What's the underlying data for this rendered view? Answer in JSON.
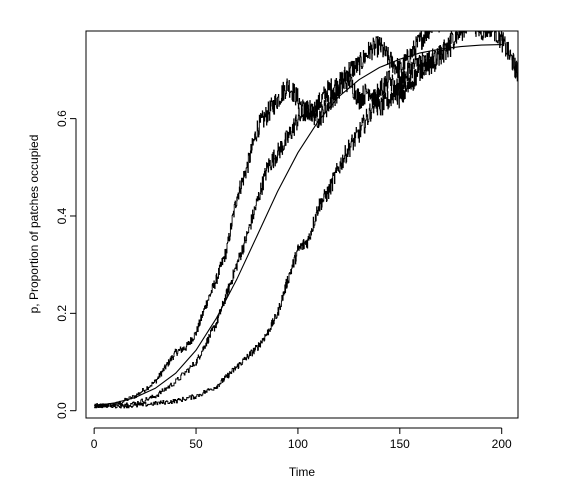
{
  "chart_data": {
    "type": "line",
    "title": "",
    "xlabel": "Time",
    "ylabel": "p, Proportion of patches occupied",
    "xlim": [
      -4,
      208
    ],
    "ylim": [
      -0.015,
      0.78
    ],
    "x_ticks": [
      0,
      50,
      100,
      150,
      200
    ],
    "x_tick_labels": [
      "0",
      "50",
      "100",
      "150",
      "200"
    ],
    "y_ticks": [
      0.0,
      0.2,
      0.4,
      0.6
    ],
    "y_tick_labels": [
      "0.0",
      "0.2",
      "0.4",
      "0.6"
    ],
    "grid": false,
    "legend": "none",
    "line_color": "#000000",
    "series": [
      {
        "style": "smooth",
        "x": [
          0,
          10,
          20,
          30,
          40,
          50,
          60,
          70,
          80,
          90,
          100,
          110,
          120,
          130,
          140,
          150,
          160,
          170,
          180,
          190,
          200
        ],
        "y": [
          0.01,
          0.016,
          0.027,
          0.046,
          0.077,
          0.124,
          0.19,
          0.27,
          0.36,
          0.45,
          0.53,
          0.595,
          0.645,
          0.68,
          0.705,
          0.722,
          0.735,
          0.743,
          0.748,
          0.751,
          0.752
        ]
      },
      {
        "style": "stochastic",
        "x": [
          0,
          10,
          20,
          30,
          35,
          40,
          45,
          50,
          55,
          60,
          65,
          70,
          75,
          80,
          85,
          90,
          95,
          100,
          105,
          110,
          115,
          120,
          125,
          130,
          135,
          140,
          145,
          150,
          155,
          160,
          165,
          170
        ],
        "y": [
          0.01,
          0.012,
          0.03,
          0.06,
          0.09,
          0.12,
          0.13,
          0.16,
          0.22,
          0.27,
          0.33,
          0.44,
          0.5,
          0.58,
          0.61,
          0.64,
          0.67,
          0.64,
          0.6,
          0.63,
          0.66,
          0.67,
          0.7,
          0.71,
          0.74,
          0.75,
          0.72,
          0.7,
          0.73,
          0.76,
          0.79,
          0.8
        ]
      },
      {
        "style": "stochastic",
        "x": [
          0,
          10,
          20,
          30,
          40,
          50,
          55,
          60,
          65,
          70,
          75,
          80,
          85,
          90,
          95,
          100,
          105,
          110,
          115,
          120,
          125,
          130,
          135,
          140,
          145,
          150,
          155,
          160,
          165,
          170,
          175,
          180,
          185,
          190,
          195,
          200,
          205,
          208
        ],
        "y": [
          0.01,
          0.012,
          0.015,
          0.03,
          0.06,
          0.1,
          0.14,
          0.18,
          0.24,
          0.3,
          0.36,
          0.43,
          0.5,
          0.53,
          0.56,
          0.6,
          0.62,
          0.6,
          0.63,
          0.66,
          0.68,
          0.64,
          0.66,
          0.62,
          0.64,
          0.67,
          0.7,
          0.72,
          0.71,
          0.73,
          0.76,
          0.78,
          0.8,
          0.78,
          0.79,
          0.76,
          0.72,
          0.69
        ]
      },
      {
        "style": "stochastic",
        "x": [
          0,
          10,
          20,
          30,
          40,
          50,
          60,
          65,
          70,
          75,
          80,
          85,
          90,
          95,
          100,
          105,
          110,
          115,
          120,
          125,
          130,
          135,
          140,
          145,
          150,
          155,
          160,
          165,
          170,
          175
        ],
        "y": [
          0.01,
          0.01,
          0.01,
          0.015,
          0.02,
          0.03,
          0.05,
          0.07,
          0.09,
          0.11,
          0.13,
          0.16,
          0.2,
          0.27,
          0.33,
          0.35,
          0.42,
          0.45,
          0.5,
          0.54,
          0.57,
          0.61,
          0.66,
          0.68,
          0.64,
          0.67,
          0.7,
          0.72,
          0.73,
          0.75
        ]
      }
    ]
  }
}
